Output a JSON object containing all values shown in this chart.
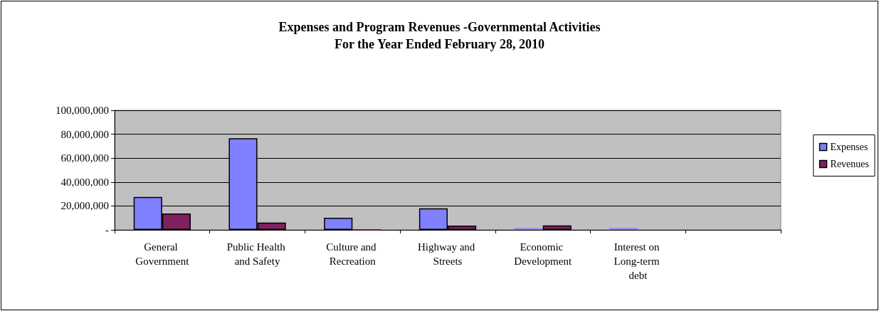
{
  "chart_data": {
    "type": "bar",
    "title": "Expenses and Program Revenues -Governmental Activities",
    "subtitle": "For the Year Ended February 28, 2010",
    "categories": [
      "General Government",
      "Public Health and Safety",
      "Culture and Recreation",
      "Highway and Streets",
      "Economic Development",
      "Interest on Long-term debt",
      null
    ],
    "series": [
      {
        "name": "Expenses",
        "color": "#8080ff",
        "values": [
          27500000,
          76600000,
          10100000,
          18000000,
          1400000,
          1500000,
          null
        ]
      },
      {
        "name": "Revenues",
        "color": "#802060",
        "values": [
          13700000,
          6100000,
          300000,
          3600000,
          3700000,
          null,
          null
        ]
      }
    ],
    "ylim": [
      0,
      100000000
    ],
    "yticks": [
      {
        "value": 0,
        "label": "-"
      },
      {
        "value": 20000000,
        "label": "20,000,000"
      },
      {
        "value": 40000000,
        "label": "40,000,000"
      },
      {
        "value": 60000000,
        "label": "60,000,000"
      },
      {
        "value": 80000000,
        "label": "80,000,000"
      },
      {
        "value": 100000000,
        "label": "100,000,000"
      }
    ],
    "grid": "y",
    "legend": "right"
  }
}
